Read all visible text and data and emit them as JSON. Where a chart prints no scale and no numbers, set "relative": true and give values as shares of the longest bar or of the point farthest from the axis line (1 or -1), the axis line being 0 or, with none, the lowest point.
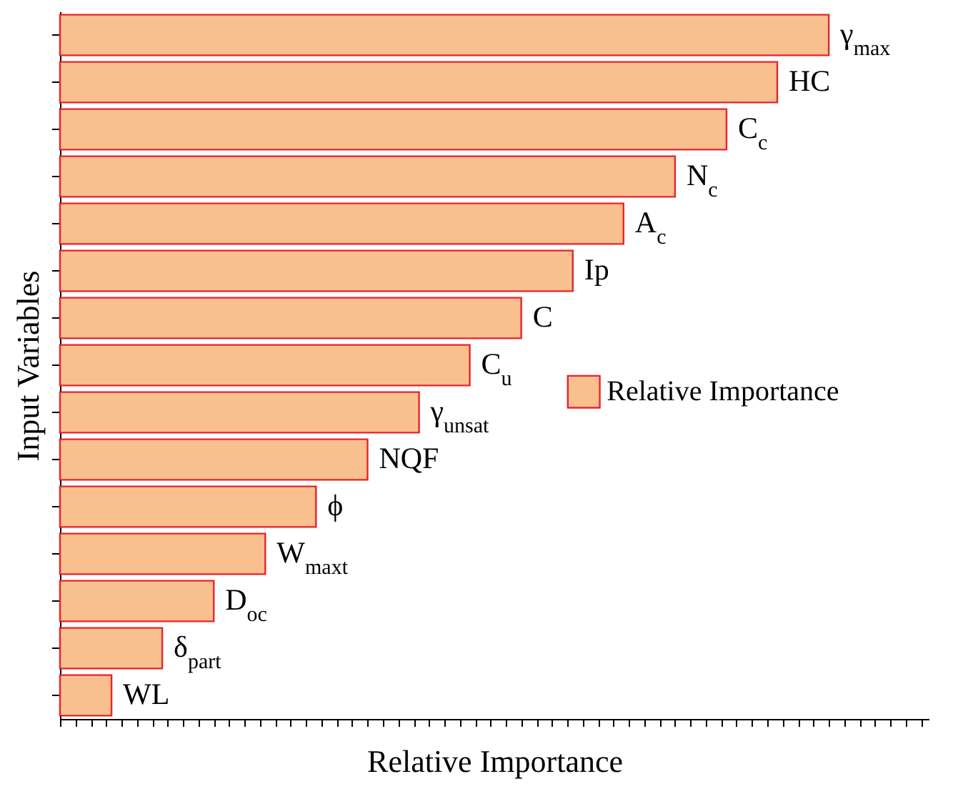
{
  "chart_data": {
    "type": "bar",
    "orientation": "horizontal",
    "relative": true,
    "xlabel": "Relative Importance",
    "ylabel": "Input Variables",
    "categories": [
      "γ$_{max}$",
      "HC",
      "C$_{c}$",
      "N$_{c}$",
      "A$_{c}$",
      "Ip",
      "C",
      "C$_{u}$",
      "γ$_{unsat}$",
      "NQF",
      "ϕ",
      "W$_{maxt}$",
      "D$_{oc}$",
      "δ$_{part}$",
      "WL"
    ],
    "series": [
      {
        "name": "Relative Importance",
        "color": "#f9c08f",
        "values": [
          1,
          0.933,
          0.867,
          0.8,
          0.733,
          0.667,
          0.6,
          0.533,
          0.467,
          0.4,
          0.333,
          0.267,
          0.2,
          0.133,
          0.067
        ]
      }
    ],
    "legend": "right",
    "tick_labels": false,
    "grid": false
  }
}
